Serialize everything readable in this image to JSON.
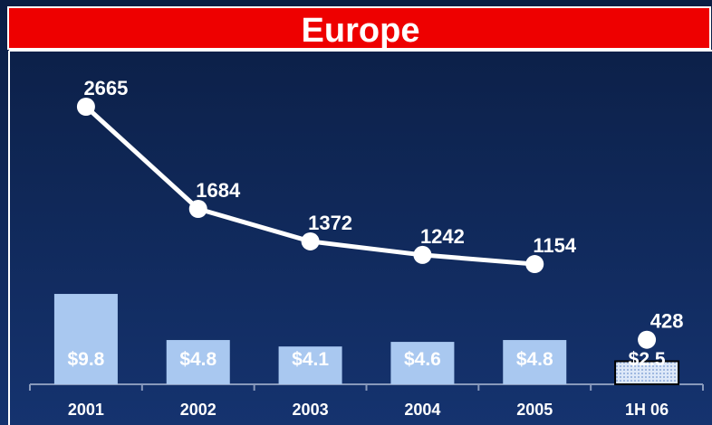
{
  "chart_data": {
    "type": "bar-line",
    "title": "Europe",
    "categories": [
      "2001",
      "2002",
      "2003",
      "2004",
      "2005",
      "1H 06"
    ],
    "bars": {
      "values": [
        9.8,
        4.8,
        4.1,
        4.6,
        4.8,
        2.5
      ],
      "value_labels": [
        "$9.8",
        "$4.8",
        "$4.1",
        "$4.6",
        "$4.8",
        "$2.5"
      ],
      "color": "#a9c8f0",
      "last_color": "#dde8f8"
    },
    "series": [
      {
        "color": "#ffffff",
        "values": [
          2665,
          1684,
          1372,
          1242,
          1154,
          null
        ]
      },
      {
        "color": "#ffffff",
        "values": [
          null,
          null,
          null,
          null,
          null,
          428
        ]
      }
    ]
  }
}
